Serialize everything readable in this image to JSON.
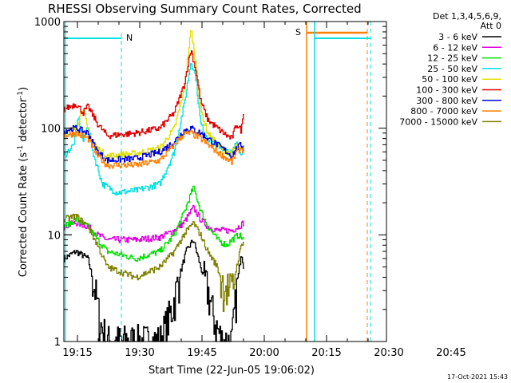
{
  "chart_data": {
    "type": "line",
    "title": "RHESSI Observing Summary Count Rates, Corrected",
    "xlabel": "Start Time (22-Jun-05 19:06:02)",
    "ylabel": "Corrected Count Rate (s",
    "ylabel_sup1": "-1",
    "ylabel_mid": " detector",
    "ylabel_sup2": "-1",
    "ylabel_end": ")",
    "y_scale": "log",
    "ylim": [
      1,
      1000
    ],
    "xlim_minutes_after_1906": [
      0,
      42
    ],
    "x_ticks": [
      {
        "label": "19:15",
        "minute": 9
      },
      {
        "label": "19:30",
        "minute": 24
      },
      {
        "label": "19:45",
        "minute": 39
      },
      {
        "label": "20:00",
        "minute": 54
      },
      {
        "label": "20:15",
        "minute": 69
      },
      {
        "label": "20:30",
        "minute": 84
      },
      {
        "label": "20:45",
        "minute": 99
      }
    ],
    "y_ticks": [
      {
        "label": "1",
        "value": 1
      },
      {
        "label": "10",
        "value": 10
      },
      {
        "label": "100",
        "value": 100
      },
      {
        "label": "1000",
        "value": 1000
      }
    ],
    "legend_header": [
      "Det 1,3,4,5,6,9,",
      "Att 0"
    ],
    "legend_position": "right",
    "series": [
      {
        "name": "3 - 6 keV",
        "color": "#000000",
        "points": [
          [
            0,
            6
          ],
          [
            5,
            7
          ],
          [
            10,
            6
          ],
          [
            13,
            3
          ],
          [
            15,
            1.5
          ],
          [
            18,
            1
          ],
          [
            30,
            1
          ],
          [
            40,
            1
          ],
          [
            45,
            2
          ],
          [
            48,
            4
          ],
          [
            51,
            7
          ],
          [
            54,
            9
          ],
          [
            57,
            5
          ],
          [
            60,
            3
          ],
          [
            63,
            1.5
          ],
          [
            66,
            1
          ],
          [
            70,
            1
          ],
          [
            72,
            3
          ],
          [
            74,
            7
          ],
          [
            75,
            5
          ]
        ]
      },
      {
        "name": "6 - 12 keV",
        "color": "#e000e0",
        "points": [
          [
            0,
            12
          ],
          [
            5,
            13
          ],
          [
            10,
            12
          ],
          [
            14,
            10
          ],
          [
            18,
            9
          ],
          [
            30,
            9
          ],
          [
            40,
            9.5
          ],
          [
            46,
            11
          ],
          [
            50,
            13
          ],
          [
            54,
            18
          ],
          [
            57,
            14
          ],
          [
            60,
            12
          ],
          [
            64,
            11
          ],
          [
            70,
            11
          ],
          [
            73,
            12
          ],
          [
            75,
            13
          ]
        ]
      },
      {
        "name": "12 - 25 keV",
        "color": "#00e000",
        "points": [
          [
            0,
            12
          ],
          [
            5,
            14
          ],
          [
            10,
            12
          ],
          [
            14,
            9
          ],
          [
            18,
            7
          ],
          [
            30,
            6
          ],
          [
            40,
            7
          ],
          [
            46,
            10
          ],
          [
            50,
            16
          ],
          [
            54,
            28
          ],
          [
            57,
            17
          ],
          [
            60,
            12
          ],
          [
            64,
            9
          ],
          [
            68,
            8
          ],
          [
            70,
            9
          ],
          [
            73,
            10
          ],
          [
            75,
            9
          ]
        ]
      },
      {
        "name": "25 - 50 keV",
        "color": "#00e0e0",
        "points": [
          [
            0,
            55
          ],
          [
            4,
            70
          ],
          [
            6,
            130
          ],
          [
            8,
            75
          ],
          [
            10,
            110
          ],
          [
            12,
            60
          ],
          [
            16,
            30
          ],
          [
            22,
            25
          ],
          [
            30,
            26
          ],
          [
            40,
            30
          ],
          [
            46,
            60
          ],
          [
            50,
            160
          ],
          [
            53,
            430
          ],
          [
            55,
            300
          ],
          [
            57,
            110
          ],
          [
            60,
            80
          ],
          [
            64,
            70
          ],
          [
            68,
            60
          ],
          [
            70,
            58
          ],
          [
            72,
            75
          ],
          [
            74,
            55
          ],
          [
            75,
            70
          ]
        ]
      },
      {
        "name": "50 - 100 keV",
        "color": "#e0e000",
        "points": [
          [
            0,
            90
          ],
          [
            5,
            100
          ],
          [
            8,
            160
          ],
          [
            10,
            90
          ],
          [
            14,
            65
          ],
          [
            18,
            55
          ],
          [
            30,
            58
          ],
          [
            40,
            65
          ],
          [
            46,
            100
          ],
          [
            50,
            220
          ],
          [
            53,
            850
          ],
          [
            55,
            400
          ],
          [
            57,
            150
          ],
          [
            60,
            90
          ],
          [
            64,
            70
          ],
          [
            68,
            60
          ],
          [
            70,
            58
          ],
          [
            72,
            70
          ],
          [
            74,
            60
          ],
          [
            75,
            65
          ]
        ]
      },
      {
        "name": "100 - 300 keV",
        "color": "#e00000",
        "points": [
          [
            0,
            150
          ],
          [
            5,
            170
          ],
          [
            8,
            140
          ],
          [
            10,
            160
          ],
          [
            14,
            110
          ],
          [
            18,
            85
          ],
          [
            30,
            90
          ],
          [
            40,
            100
          ],
          [
            46,
            140
          ],
          [
            50,
            250
          ],
          [
            53,
            550
          ],
          [
            55,
            350
          ],
          [
            57,
            180
          ],
          [
            60,
            120
          ],
          [
            64,
            100
          ],
          [
            68,
            85
          ],
          [
            70,
            80
          ],
          [
            72,
            110
          ],
          [
            74,
            95
          ],
          [
            75,
            150
          ]
        ]
      },
      {
        "name": "300 - 800 keV",
        "color": "#0000e0",
        "points": [
          [
            0,
            95
          ],
          [
            5,
            100
          ],
          [
            10,
            90
          ],
          [
            14,
            60
          ],
          [
            18,
            50
          ],
          [
            30,
            52
          ],
          [
            40,
            60
          ],
          [
            46,
            75
          ],
          [
            50,
            95
          ],
          [
            53,
            100
          ],
          [
            57,
            90
          ],
          [
            60,
            80
          ],
          [
            64,
            70
          ],
          [
            68,
            60
          ],
          [
            70,
            55
          ],
          [
            72,
            65
          ],
          [
            74,
            70
          ],
          [
            75,
            65
          ]
        ]
      },
      {
        "name": "800 - 7000 keV",
        "color": "#ff8000",
        "points": [
          [
            0,
            85
          ],
          [
            5,
            90
          ],
          [
            10,
            80
          ],
          [
            14,
            55
          ],
          [
            18,
            45
          ],
          [
            30,
            45
          ],
          [
            40,
            50
          ],
          [
            46,
            70
          ],
          [
            50,
            88
          ],
          [
            53,
            90
          ],
          [
            57,
            80
          ],
          [
            60,
            70
          ],
          [
            64,
            60
          ],
          [
            68,
            52
          ],
          [
            70,
            48
          ],
          [
            72,
            60
          ],
          [
            74,
            65
          ],
          [
            75,
            62
          ]
        ]
      },
      {
        "name": "7000 - 15000 keV",
        "color": "#808000",
        "points": [
          [
            0,
            14
          ],
          [
            5,
            15
          ],
          [
            10,
            12
          ],
          [
            14,
            8
          ],
          [
            18,
            5
          ],
          [
            30,
            4
          ],
          [
            40,
            5
          ],
          [
            46,
            7
          ],
          [
            50,
            10
          ],
          [
            54,
            13
          ],
          [
            57,
            10
          ],
          [
            60,
            7
          ],
          [
            64,
            5
          ],
          [
            66,
            3.5
          ],
          [
            70,
            3
          ],
          [
            72,
            5
          ],
          [
            74,
            8
          ],
          [
            75,
            9
          ]
        ]
      }
    ],
    "annotations": [
      {
        "label": "N",
        "color": "#00e0e0"
      },
      {
        "label": "S",
        "color": "#ff8000"
      }
    ],
    "timestamp": "17-Oct-2021 15:43"
  }
}
